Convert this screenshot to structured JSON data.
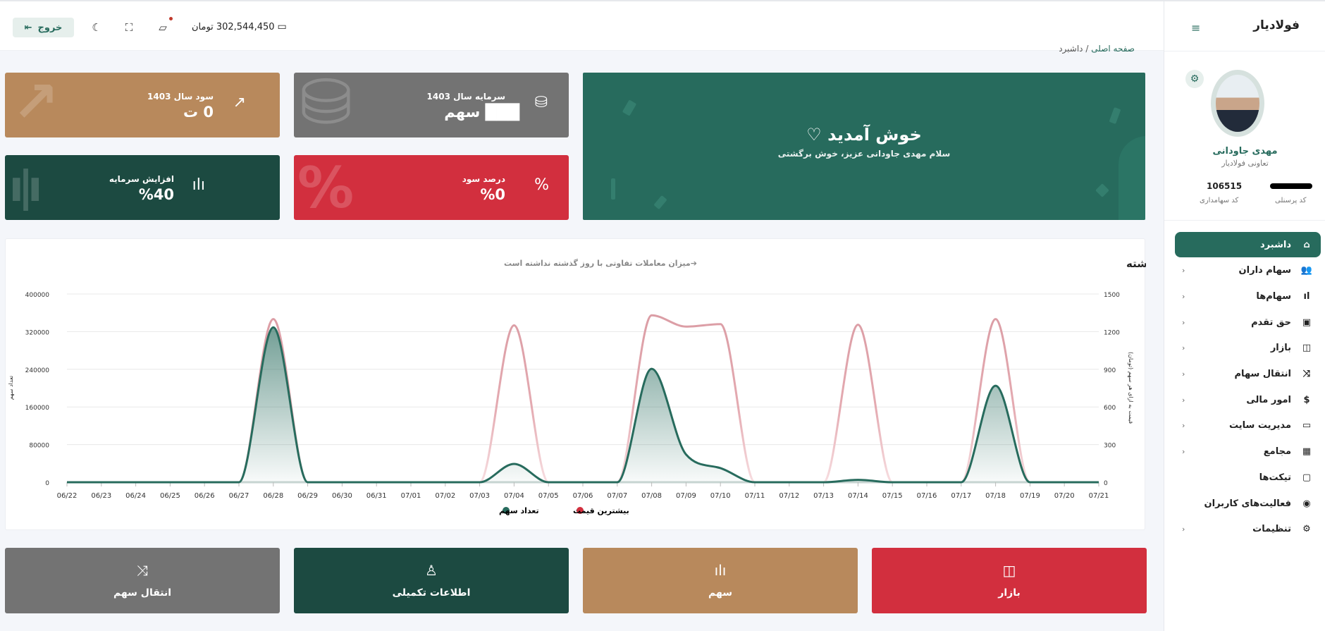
{
  "topbar": {
    "logout_label": "خروج",
    "wallet_amount": "302,544,450",
    "wallet_unit": "تومان",
    "icons": [
      "logout-icon",
      "moon-icon",
      "fullscreen-icon",
      "chat-icon",
      "wallet-icon"
    ]
  },
  "breadcrumb": {
    "home": "صفحه اصلی",
    "sep": "/",
    "current": "داشبرد"
  },
  "stats": [
    {
      "title": "سود سال 1403",
      "value": "0 ت",
      "color": "#b8895c",
      "icon": "trending-up-icon"
    },
    {
      "title": "سرمایه سال 1403",
      "value": "███ سهم",
      "color": "#737373",
      "icon": "database-icon"
    },
    {
      "title": "افزایش سرمایه",
      "value": "%40",
      "color": "#1c4a41",
      "icon": "bar-chart-icon"
    },
    {
      "title": "درصد سود",
      "value": "%0",
      "color": "#d22f3e",
      "icon": "percent-icon"
    }
  ],
  "welcome": {
    "title": "خوش آمدید ♡",
    "subtitle": "سلام مهدی جاودانی عزیز، خوش برگشتی",
    "color": "#276b5d"
  },
  "chart_data": {
    "type": "line",
    "title": "نمای معاملات ماه گذشته",
    "subtitle": "➔میزان معاملات تفاوتی با روز گذشته نداشته است",
    "x": [
      "06/22",
      "06/23",
      "06/24",
      "06/25",
      "06/26",
      "06/27",
      "06/28",
      "06/29",
      "06/30",
      "06/31",
      "07/01",
      "07/02",
      "07/03",
      "07/04",
      "07/05",
      "07/06",
      "07/07",
      "07/08",
      "07/09",
      "07/10",
      "07/11",
      "07/12",
      "07/13",
      "07/14",
      "07/15",
      "07/16",
      "07/17",
      "07/18",
      "07/19",
      "07/20",
      "07/21"
    ],
    "series": [
      {
        "name": "تعداد سهم",
        "axis": "left",
        "color": "#276b5d",
        "area": true,
        "values": [
          0,
          0,
          0,
          0,
          0,
          0,
          329000,
          0,
          0,
          0,
          0,
          0,
          0,
          39000,
          0,
          0,
          0,
          241000,
          59000,
          30000,
          0,
          0,
          0,
          5000,
          0,
          0,
          0,
          205000,
          0,
          0,
          0
        ]
      },
      {
        "name": "بیشترین قیمت",
        "axis": "right",
        "color": "#d22f3e",
        "area": false,
        "values": [
          0,
          0,
          0,
          0,
          0,
          0,
          1300,
          0,
          0,
          0,
          0,
          0,
          0,
          1250,
          0,
          0,
          0,
          1330,
          1240,
          1260,
          0,
          0,
          0,
          1255,
          0,
          0,
          0,
          1300,
          0,
          0,
          0
        ]
      }
    ],
    "ylabel_left": "تعداد سهم",
    "ylim_left": [
      0,
      400000
    ],
    "yticks_left": [
      "0",
      "80000",
      "160000",
      "240000",
      "320000",
      "400000"
    ],
    "ylabel_right": "قیمت به ازای هر سهم (تومان)",
    "ylim_right": [
      0,
      1500
    ],
    "yticks_right": [
      "0",
      "300",
      "600",
      "900",
      "1200",
      "1500"
    ],
    "grid": true,
    "legend": "bottom-center"
  },
  "quick_links": [
    {
      "label": "انتقال سهم",
      "color": "#737373",
      "icon": "shuffle-icon"
    },
    {
      "label": "اطلاعات تکمیلی",
      "color": "#1c4a41",
      "icon": "user-icon"
    },
    {
      "label": "سهم",
      "color": "#b8895c",
      "icon": "bar-chart-icon"
    },
    {
      "label": "بازار",
      "color": "#d22f3e",
      "icon": "shopping-bag-icon"
    }
  ],
  "sidebar": {
    "logo": "فولادیار",
    "profile": {
      "name": "مهدی جاودانی",
      "org": "تعاونی فولادیار",
      "shareholder_code": "106515",
      "shareholder_code_label": "کد سهامداری",
      "personnel_code": "███████",
      "personnel_code_label": "کد پرسنلی"
    },
    "items": [
      {
        "label": "داشبرد",
        "icon": "home-icon",
        "glyph": "⌂",
        "active": true,
        "chevron": false
      },
      {
        "label": "سهام داران",
        "icon": "users-icon",
        "glyph": "👥",
        "chevron": true
      },
      {
        "label": "سهام‌ها",
        "icon": "bar-chart-icon",
        "glyph": "ıl",
        "chevron": true
      },
      {
        "label": "حق تقدم",
        "icon": "gift-icon",
        "glyph": "▣",
        "chevron": true
      },
      {
        "label": "بازار",
        "icon": "shopping-bag-icon",
        "glyph": "◫",
        "chevron": true
      },
      {
        "label": "انتقال سهام",
        "icon": "shuffle-icon",
        "glyph": "⤨",
        "chevron": true
      },
      {
        "label": "امور مالی",
        "icon": "dollar-icon",
        "glyph": "$",
        "chevron": true
      },
      {
        "label": "مدیریت سایت",
        "icon": "monitor-icon",
        "glyph": "▭",
        "chevron": true
      },
      {
        "label": "مجامع",
        "icon": "calendar-icon",
        "glyph": "▦",
        "chevron": true
      },
      {
        "label": "تیکت‌ها",
        "icon": "message-icon",
        "glyph": "▢",
        "chevron": false
      },
      {
        "label": "فعالیت‌های کاربران",
        "icon": "eye-icon",
        "glyph": "◉",
        "chevron": false
      },
      {
        "label": "تنظیمات",
        "icon": "settings-icon",
        "glyph": "⚙",
        "chevron": true
      }
    ]
  }
}
